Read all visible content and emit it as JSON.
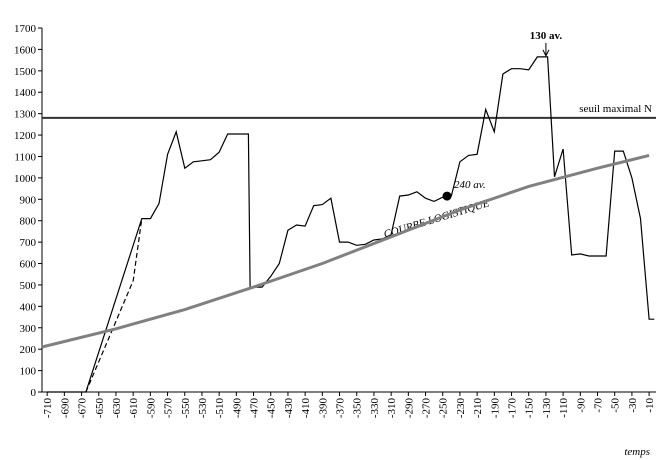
{
  "chart_data": {
    "type": "line",
    "xlim": [
      -716,
      -2
    ],
    "ylim": [
      0,
      1700
    ],
    "xticks": [
      -710,
      -690,
      -670,
      -650,
      -630,
      -610,
      -590,
      -570,
      -550,
      -530,
      -510,
      -490,
      -470,
      -450,
      -430,
      -410,
      -390,
      -370,
      -350,
      -330,
      -310,
      -290,
      -270,
      -250,
      -230,
      -210,
      -190,
      -170,
      -150,
      -130,
      -110,
      -90,
      -70,
      -50,
      -30,
      -10
    ],
    "yticks": [
      0,
      100,
      200,
      300,
      400,
      500,
      600,
      700,
      800,
      900,
      1000,
      1100,
      1200,
      1300,
      1400,
      1500,
      1600,
      1700
    ],
    "x_label": "temps",
    "series": [
      {
        "color": "#000000",
        "style": "solid",
        "x": [
          -710,
          -665,
          -600,
          -590,
          -580,
          -570,
          -560,
          -550,
          -540,
          -530,
          -520,
          -510,
          -500,
          -490,
          -476,
          -474,
          -460,
          -450,
          -440,
          -430,
          -420,
          -410,
          -400,
          -390,
          -380,
          -370,
          -360,
          -350,
          -340,
          -330,
          -320,
          -310,
          -300,
          -290,
          -280,
          -270,
          -260,
          -250,
          -240,
          -230,
          -220,
          -210,
          -200,
          -190,
          -180,
          -170,
          -160,
          -150,
          -140,
          -128,
          -120,
          -110,
          -100,
          -90,
          -80,
          -70,
          -60,
          -50,
          -40,
          -30,
          -20,
          -10,
          -4
        ],
        "values": [
          0,
          0,
          810,
          810,
          880,
          1110,
          1215,
          1045,
          1075,
          1080,
          1085,
          1120,
          1205,
          1205,
          1205,
          490,
          490,
          540,
          600,
          755,
          780,
          775,
          870,
          875,
          905,
          700,
          700,
          685,
          690,
          710,
          715,
          735,
          915,
          920,
          935,
          905,
          890,
          910,
          915,
          1075,
          1105,
          1110,
          1320,
          1215,
          1485,
          1510,
          1510,
          1505,
          1565,
          1565,
          1005,
          1135,
          640,
          645,
          635,
          635,
          635,
          1125,
          1125,
          1000,
          810,
          340,
          340
        ]
      },
      {
        "color": "#000000",
        "style": "dashed",
        "x": [
          -665,
          -610,
          -600
        ],
        "values": [
          0,
          520,
          810
        ]
      },
      {
        "color": "#808080",
        "style": "thick",
        "x": [
          -716,
          -630,
          -550,
          -470,
          -390,
          -310,
          -230,
          -150,
          -70,
          -10
        ],
        "values": [
          210,
          295,
          385,
          490,
          600,
          725,
          850,
          960,
          1045,
          1105
        ]
      }
    ],
    "threshold": {
      "value": 1280,
      "label": "seuil maximal N"
    },
    "curve_label": "COURBE LOGISTIQUE",
    "annotations": [
      {
        "text": "130 av.",
        "x": -130,
        "y": 1565,
        "kind": "arrow"
      },
      {
        "text": "240 av.",
        "x": -245,
        "y": 915,
        "kind": "dot"
      }
    ]
  }
}
